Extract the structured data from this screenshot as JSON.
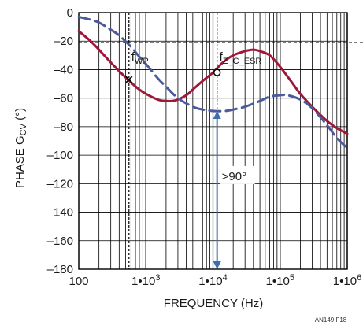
{
  "chart_data": {
    "type": "line",
    "xlabel": "FREQUENCY (Hz)",
    "ylabel_main": "PHASE G",
    "ylabel_sub": "CV",
    "ylabel_unit": " (°)",
    "x_scale": "log",
    "xlim": [
      100,
      1000000
    ],
    "ylim": [
      -180,
      0
    ],
    "grid": true,
    "x_ticks": [
      {
        "value": 100,
        "base": "100",
        "exp": ""
      },
      {
        "value": 1000,
        "base": "1•10",
        "exp": "3"
      },
      {
        "value": 10000,
        "base": "1•10",
        "exp": "4"
      },
      {
        "value": 100000,
        "base": "1•10",
        "exp": "5"
      },
      {
        "value": 1000000,
        "base": "1•10",
        "exp": "6"
      }
    ],
    "y_ticks": [
      "0",
      "–20",
      "–40",
      "–60",
      "–80",
      "–100",
      "–120",
      "–140",
      "–160",
      "–180"
    ],
    "y_tick_values": [
      0,
      -20,
      -40,
      -60,
      -80,
      -100,
      -120,
      -140,
      -160,
      -180
    ],
    "series": [
      {
        "color": "#a0173a",
        "style": "solid",
        "x": [
          100,
          150,
          200,
          300,
          400,
          600,
          800,
          1000,
          1500,
          2000,
          2500,
          3000,
          4000,
          5000,
          7000,
          10000,
          14000,
          20000,
          30000,
          40000,
          50000,
          70000,
          100000,
          150000,
          200000,
          300000,
          500000,
          700000,
          1000000
        ],
        "y": [
          -13,
          -20,
          -26,
          -35,
          -41,
          -49,
          -54,
          -57,
          -61,
          -62,
          -62,
          -61,
          -58,
          -54,
          -48,
          -42,
          -35,
          -30,
          -27,
          -26,
          -27,
          -30,
          -38,
          -49,
          -57,
          -66,
          -76,
          -81,
          -85
        ]
      },
      {
        "color": "#4a5a9a",
        "style": "dashed",
        "x": [
          100,
          150,
          200,
          300,
          400,
          600,
          800,
          1000,
          1500,
          2000,
          3000,
          5000,
          7000,
          10000,
          15000,
          20000,
          30000,
          50000,
          70000,
          100000,
          130000,
          200000,
          300000,
          500000,
          700000,
          1000000
        ],
        "y": [
          -3,
          -5,
          -7,
          -12,
          -16,
          -24,
          -31,
          -36,
          -46,
          -52,
          -60,
          -66,
          -68,
          -69,
          -69,
          -68,
          -66,
          -62,
          -59,
          -58,
          -58,
          -61,
          -67,
          -79,
          -88,
          -95
        ]
      }
    ],
    "annotations": [
      {
        "text": "f",
        "sub": "WP",
        "x": 560,
        "y": -15
      },
      {
        "text": "f",
        "sub": "Z_C_ESR",
        "x": 11500,
        "y": -15
      },
      {
        "text": ">90°",
        "x": 11500,
        "y": -117
      }
    ],
    "markers": [
      {
        "shape": "cross",
        "x": 560,
        "y": -47
      },
      {
        "shape": "circle",
        "x": 11500,
        "y": -42
      }
    ],
    "vlines": [
      560,
      11500
    ],
    "hline_y": -21,
    "arrow": {
      "x": 11500,
      "y_from": -69,
      "y_to": -180
    },
    "figure_id": "AN149 F18"
  }
}
